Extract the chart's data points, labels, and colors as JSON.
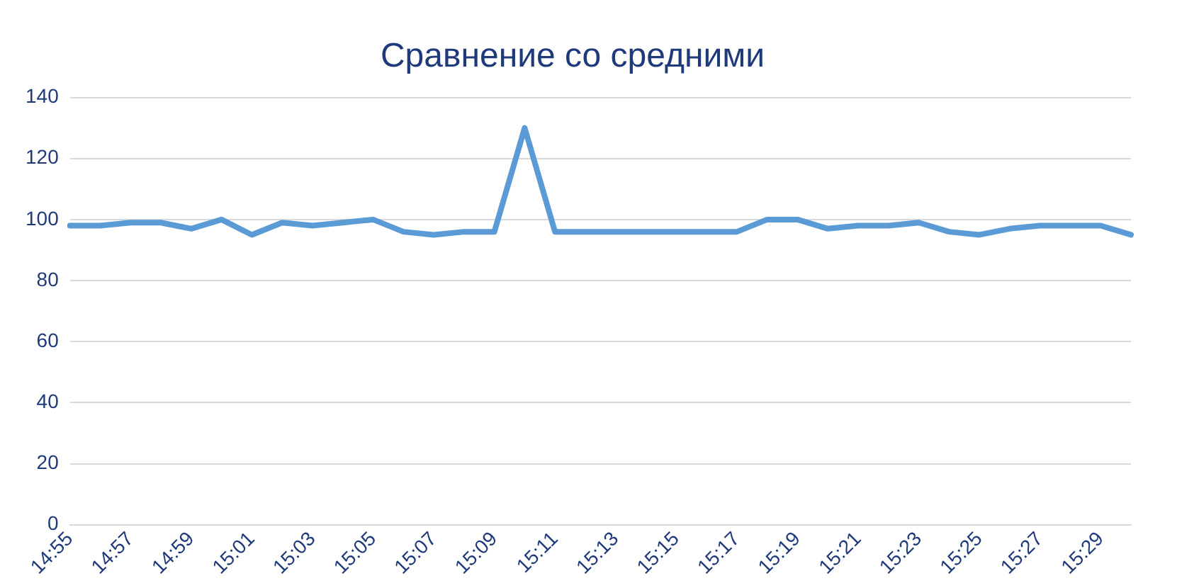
{
  "chart_data": {
    "type": "line",
    "title": "Сравнение со средними",
    "categories": [
      "14:55",
      null,
      "14:57",
      null,
      "14:59",
      null,
      "15:01",
      null,
      "15:03",
      null,
      "15:05",
      null,
      "15:07",
      null,
      "15:09",
      null,
      "15:11",
      null,
      "15:13",
      null,
      "15:15",
      null,
      "15:17",
      null,
      "15:19",
      null,
      "15:21",
      null,
      "15:23",
      null,
      "15:25",
      null,
      "15:27",
      null,
      "15:29",
      null
    ],
    "series": [
      {
        "color": "#5b9bd5",
        "values": [
          98,
          98,
          99,
          99,
          97,
          100,
          95,
          99,
          98,
          99,
          100,
          96,
          95,
          96,
          96,
          130,
          96,
          96,
          96,
          96,
          96,
          96,
          96,
          100,
          100,
          97,
          98,
          98,
          99,
          96,
          95,
          97,
          98,
          98,
          98,
          95
        ]
      }
    ],
    "ylim": [
      0,
      140
    ],
    "yticks": [
      0,
      20,
      40,
      60,
      80,
      100,
      120,
      140
    ],
    "grid": "y",
    "legend": false,
    "marker": "none",
    "line_style": "solid"
  }
}
